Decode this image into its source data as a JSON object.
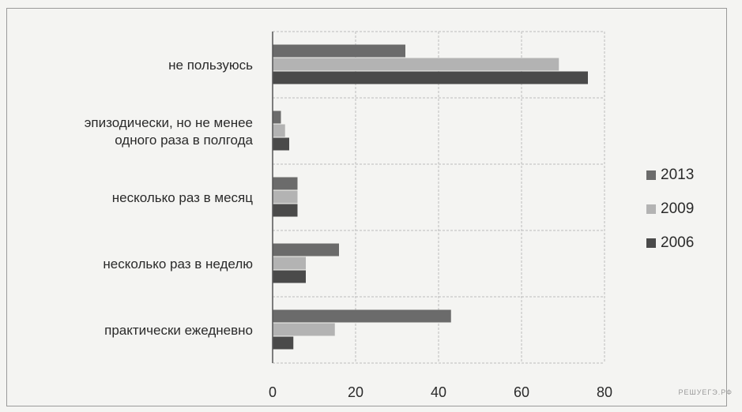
{
  "chart_data": {
    "type": "bar",
    "orientation": "horizontal",
    "categories": [
      "не пользуюсь",
      "эпизодически, но не менее одного раза в полгода",
      "несколько раз в месяц",
      "несколько раз в неделю",
      "практически ежедневно"
    ],
    "category_lines": [
      [
        "не пользуюсь"
      ],
      [
        "эпизодически, но не менее",
        "одного раза в полгода"
      ],
      [
        "несколько раз в месяц"
      ],
      [
        "несколько раз в неделю"
      ],
      [
        "практически ежедневно"
      ]
    ],
    "series": [
      {
        "name": "2013",
        "color": "#6b6b6b",
        "values": [
          32,
          2,
          6,
          16,
          43
        ]
      },
      {
        "name": "2009",
        "color": "#b3b3b3",
        "values": [
          69,
          3,
          6,
          8,
          15
        ]
      },
      {
        "name": "2006",
        "color": "#4a4a4a",
        "values": [
          76,
          4,
          6,
          8,
          5
        ]
      }
    ],
    "xlim": [
      0,
      80
    ],
    "xticks": [
      0,
      20,
      40,
      60,
      80
    ],
    "grid": true,
    "legend_position": "right",
    "title": "",
    "xlabel": "",
    "ylabel": ""
  },
  "watermark": "РЕШУЕГЭ.РФ"
}
